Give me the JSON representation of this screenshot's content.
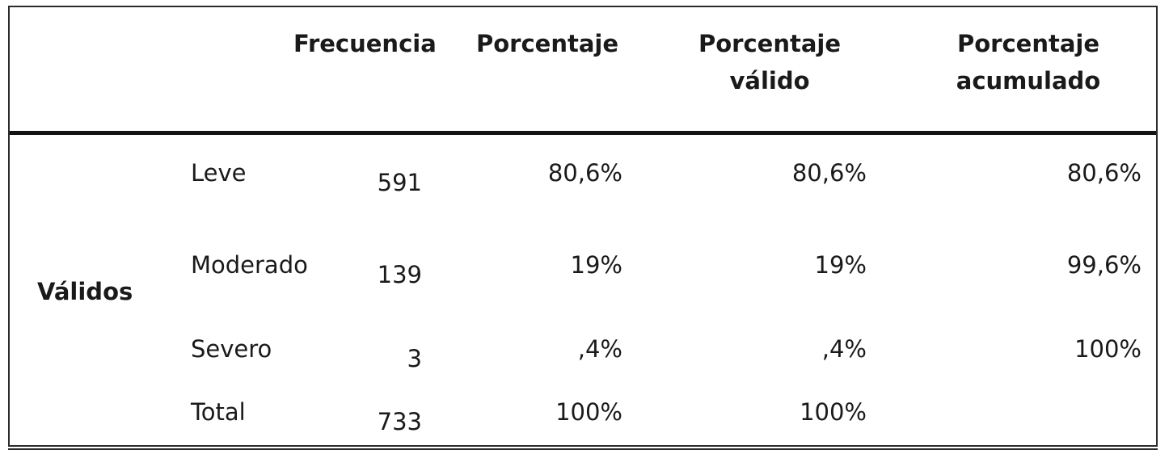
{
  "table": {
    "headers": {
      "frecuencia": "Frecuencia",
      "porcentaje": "Porcentaje",
      "porcentaje_valido": [
        "Porcentaje",
        "válido"
      ],
      "porcentaje_acumulado": [
        "Porcentaje",
        "acumulado"
      ]
    },
    "group_label": "Válidos",
    "rows": [
      {
        "label": "Leve",
        "frecuencia": "591",
        "porcentaje": "80,6%",
        "porcentaje_valido": "80,6%",
        "porcentaje_acumulado": "80,6%"
      },
      {
        "label": "Moderado",
        "frecuencia": "139",
        "porcentaje": "19%",
        "porcentaje_valido": "19%",
        "porcentaje_acumulado": "99,6%"
      },
      {
        "label": "Severo",
        "frecuencia": "3",
        "porcentaje": ",4%",
        "porcentaje_valido": ",4%",
        "porcentaje_acumulado": "100%"
      },
      {
        "label": "Total",
        "frecuencia": "733",
        "porcentaje": "100%",
        "porcentaje_valido": "100%",
        "porcentaje_acumulado": ""
      }
    ]
  }
}
